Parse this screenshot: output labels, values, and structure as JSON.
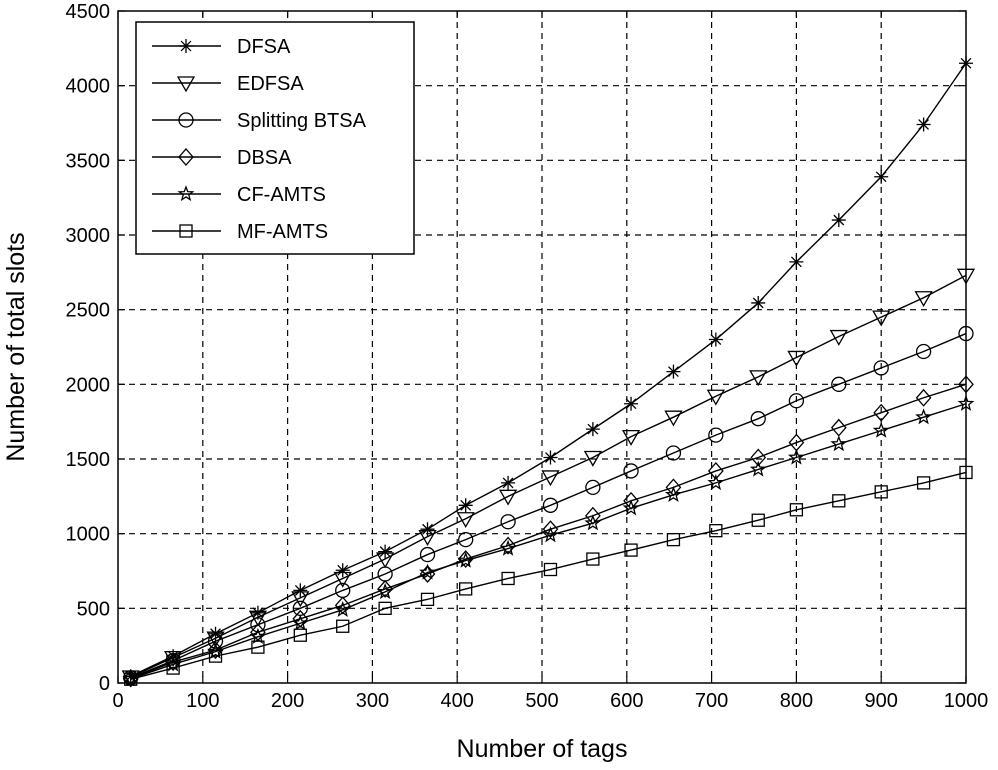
{
  "chart_data": {
    "type": "line",
    "title": "",
    "xlabel": "Number of tags",
    "ylabel": "Number of total slots",
    "xlim": [
      0,
      1000
    ],
    "ylim": [
      0,
      4500
    ],
    "xticks": [
      0,
      100,
      200,
      300,
      400,
      500,
      600,
      700,
      800,
      900,
      1000
    ],
    "yticks": [
      0,
      500,
      1000,
      1500,
      2000,
      2500,
      3000,
      3500,
      4000,
      4500
    ],
    "xtick_labels": [
      "0",
      "100",
      "200",
      "300",
      "400",
      "500",
      "600",
      "700",
      "800",
      "900",
      "1000"
    ],
    "ytick_labels": [
      "0",
      "500",
      "1000",
      "1500",
      "2000",
      "2500",
      "3000",
      "3500",
      "4000",
      "4500"
    ],
    "grid": true,
    "legend_position": "top-left",
    "x": [
      15,
      65,
      115,
      165,
      215,
      265,
      315,
      365,
      410,
      460,
      510,
      560,
      605,
      655,
      705,
      755,
      800,
      850,
      900,
      950,
      1000
    ],
    "series": [
      {
        "name": "DFSA",
        "marker": "asterisk",
        "values": [
          45,
          180,
          330,
          470,
          620,
          755,
          880,
          1030,
          1190,
          1340,
          1510,
          1700,
          1870,
          2085,
          2300,
          2545,
          2820,
          3100,
          3390,
          3740,
          4150
        ]
      },
      {
        "name": "EDFSA",
        "marker": "triangle-down",
        "values": [
          40,
          170,
          300,
          440,
          570,
          700,
          830,
          980,
          1100,
          1250,
          1380,
          1510,
          1650,
          1780,
          1920,
          2050,
          2180,
          2320,
          2450,
          2580,
          2730
        ]
      },
      {
        "name": "Splitting BTSA",
        "marker": "circle",
        "values": [
          35,
          150,
          280,
          390,
          500,
          620,
          730,
          860,
          960,
          1080,
          1190,
          1310,
          1420,
          1540,
          1660,
          1770,
          1890,
          2000,
          2110,
          2220,
          2340
        ]
      },
      {
        "name": "DBSA",
        "marker": "diamond",
        "values": [
          30,
          140,
          220,
          340,
          430,
          520,
          630,
          730,
          830,
          920,
          1030,
          1120,
          1220,
          1310,
          1420,
          1510,
          1610,
          1710,
          1810,
          1910,
          2000
        ]
      },
      {
        "name": "CF-AMTS",
        "marker": "star",
        "values": [
          28,
          125,
          210,
          310,
          400,
          490,
          610,
          740,
          820,
          900,
          990,
          1070,
          1170,
          1260,
          1340,
          1430,
          1510,
          1600,
          1690,
          1780,
          1870
        ]
      },
      {
        "name": "MF-AMTS",
        "marker": "square",
        "values": [
          25,
          100,
          180,
          240,
          320,
          380,
          500,
          560,
          630,
          700,
          760,
          830,
          890,
          960,
          1020,
          1090,
          1160,
          1220,
          1280,
          1340,
          1410
        ]
      }
    ]
  }
}
